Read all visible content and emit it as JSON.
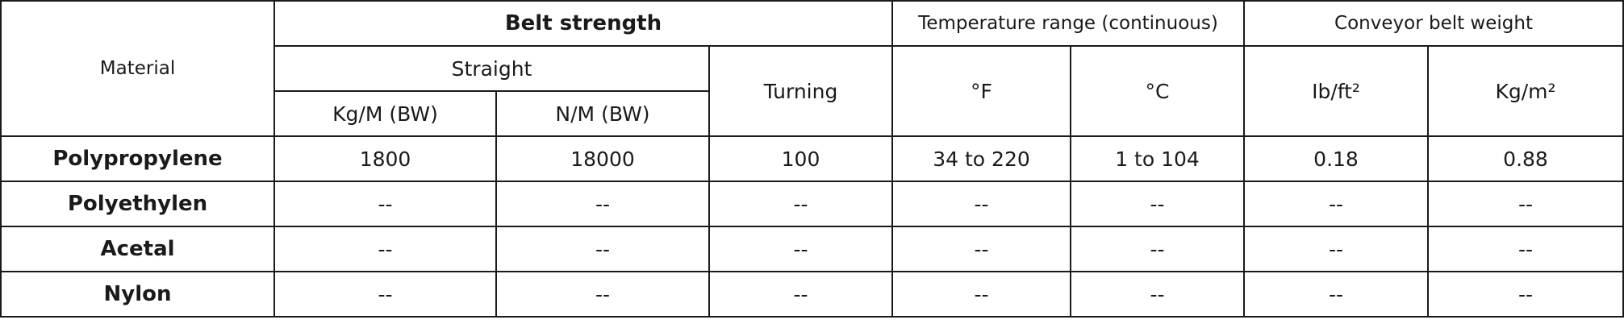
{
  "header": {
    "material": "Material",
    "belt_strength": "Belt strength",
    "temperature_range": "Temperature range (continuous)",
    "belt_weight": "Conveyor belt weight",
    "straight": "Straight",
    "turning": "Turning",
    "fahrenheit": "°F",
    "celsius": "°C",
    "lb_ft2": "Ib/ft²",
    "kg_m2": "Kg/m²",
    "kg_m_bw": "Kg/M (BW)",
    "n_m_bw": "N/M (BW)"
  },
  "rows": [
    [
      "Polypropylene",
      1800,
      18000,
      100,
      "34 to 220",
      "1 to 104",
      0.18,
      0.88
    ],
    [
      "Polyethylen",
      "--",
      "--",
      "--",
      "--",
      "--",
      "--",
      "--"
    ],
    [
      "Acetal",
      "--",
      "--",
      "--",
      "--",
      "--",
      "--",
      "--"
    ],
    [
      "Nylon",
      "--",
      "--",
      "--",
      "--",
      "--",
      "--",
      "--"
    ]
  ]
}
